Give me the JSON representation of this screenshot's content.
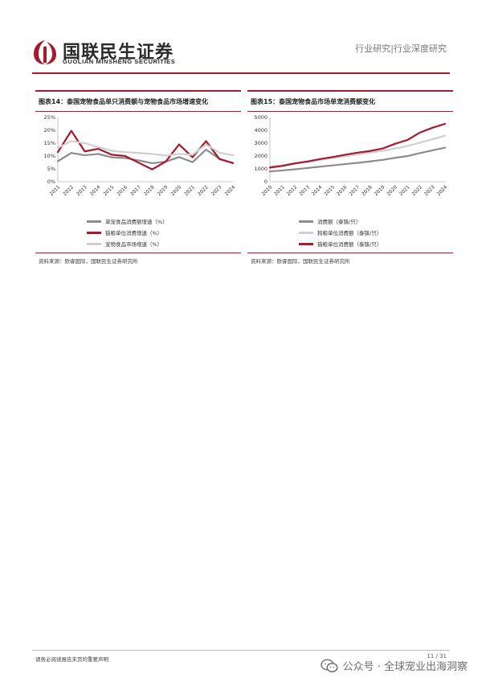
{
  "header": {
    "logo_cn": "国联民生证券",
    "logo_en": "GUOLIAN MINSHENG SECURITIES",
    "section": "行业研究|行业深度研究"
  },
  "colors": {
    "brand_red": "#a6192e",
    "series_dark_red": "#a6192e",
    "series_gray": "#8c8c8c",
    "series_light_gray": "#cfcfcf"
  },
  "figures": [
    {
      "title": "图表14：泰国宠物食品单只消费额与宠物食品市场增速变化",
      "source": "资料来源：欧睿国际，国联民生证券研究所",
      "legend": [
        "单宠食品消费额增速（%）",
        "猫粮单位消费增速（%）",
        "宠物食品市场增速（%）"
      ],
      "legend_colors": [
        "#8c8c8c",
        "#a6192e",
        "#cfcfcf"
      ]
    },
    {
      "title": "图表15：泰国宠物食品市场单宠消费额变化",
      "source": "资料来源：欧睿国际，国联民生证券研究所",
      "legend": [
        "消费额（泰铢/只）",
        "狗粮单位消费额（泰铢/只）",
        "猫粮单位消费额（泰铢/只）"
      ],
      "legend_colors": [
        "#8c8c8c",
        "#cfcfcf",
        "#a6192e"
      ]
    }
  ],
  "chart_data": [
    {
      "type": "line",
      "title": "图表14：泰国宠物食品单只消费额与宠物食品市场增速变化",
      "x": [
        "2011",
        "2012",
        "2013",
        "2014",
        "2015",
        "2016",
        "2017",
        "2018",
        "2019",
        "2020",
        "2021",
        "2022",
        "2023",
        "2024"
      ],
      "ylim": [
        0,
        25
      ],
      "yticks": [
        "0%",
        "5%",
        "10%",
        "15%",
        "20%",
        "25%"
      ],
      "ytick_values": [
        0,
        5,
        10,
        15,
        20,
        25
      ],
      "grid": false,
      "legend_position": "bottom",
      "series": [
        {
          "name": "单宠食品消费额增速（%）",
          "color": "#8c8c8c",
          "values": [
            8,
            11.2,
            10.3,
            10.8,
            9.5,
            9.2,
            8.3,
            7.2,
            7.8,
            9.6,
            7.6,
            12.5,
            8.9,
            7.2
          ]
        },
        {
          "name": "猫粮单位消费增速（%）",
          "color": "#a6192e",
          "values": [
            11.5,
            19.8,
            11.8,
            12.8,
            10.5,
            10.0,
            7.4,
            4.8,
            7.8,
            14.5,
            9.5,
            15.8,
            8.8,
            7.3
          ]
        },
        {
          "name": "宠物食品市场增速（%）",
          "color": "#cfcfcf",
          "values": [
            13.2,
            15.8,
            15.0,
            13.5,
            12.0,
            11.5,
            11.2,
            10.8,
            10.2,
            10.8,
            10.5,
            14.5,
            11.3,
            10.3
          ]
        }
      ]
    },
    {
      "type": "line",
      "title": "图表15：泰国宠物食品市场单宠消费额变化",
      "x": [
        "2010",
        "2011",
        "2012",
        "2013",
        "2014",
        "2015",
        "2016",
        "2017",
        "2018",
        "2019",
        "2020",
        "2021",
        "2022",
        "2023",
        "2024"
      ],
      "ylim": [
        0,
        5000
      ],
      "yticks": [
        "0",
        "1000",
        "2000",
        "3000",
        "4000",
        "5000"
      ],
      "ytick_values": [
        0,
        1000,
        2000,
        3000,
        4000,
        5000
      ],
      "grid": false,
      "legend_position": "bottom",
      "series": [
        {
          "name": "消费额（泰铢/只）",
          "color": "#8c8c8c",
          "values": [
            800,
            880,
            970,
            1070,
            1170,
            1270,
            1370,
            1470,
            1580,
            1700,
            1860,
            2000,
            2230,
            2440,
            2650
          ]
        },
        {
          "name": "狗粮单位消费额（泰铢/只）",
          "color": "#cfcfcf",
          "values": [
            1200,
            1280,
            1420,
            1560,
            1700,
            1830,
            1980,
            2120,
            2270,
            2400,
            2580,
            2780,
            3040,
            3310,
            3580
          ]
        },
        {
          "name": "猫粮单位消费额（泰铢/只）",
          "color": "#a6192e",
          "values": [
            1100,
            1230,
            1430,
            1570,
            1760,
            1920,
            2100,
            2260,
            2390,
            2580,
            2950,
            3250,
            3830,
            4200,
            4500
          ]
        }
      ]
    }
  ],
  "footer": {
    "disclaimer": "请务必阅读报告末页的重要声明",
    "page": "11 / 31",
    "watermark": "公众号 · 全球宠业出海洞察"
  }
}
